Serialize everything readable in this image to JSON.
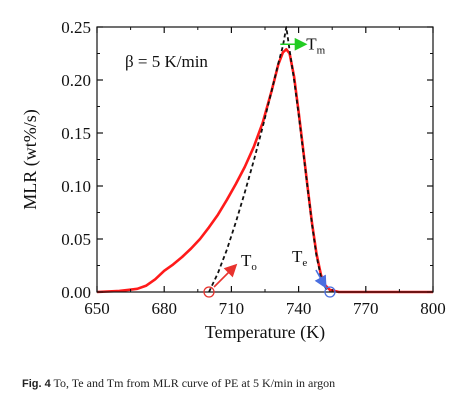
{
  "chart_data": {
    "type": "line",
    "xlabel": "Temperature (K)",
    "ylabel": "MLR (wt%/s)",
    "xlim": [
      650,
      800
    ],
    "ylim": [
      0,
      0.25
    ],
    "xticks": [
      "650",
      "680",
      "710",
      "740",
      "770",
      "800"
    ],
    "yticks": [
      "0.00",
      "0.05",
      "0.10",
      "0.15",
      "0.20",
      "0.25"
    ],
    "grid": false,
    "annotation_text": "β = 5 K/min",
    "series": [
      {
        "style": "solid",
        "color": "#ff1a1a",
        "x": [
          650,
          660,
          668,
          672,
          676,
          680,
          684,
          688,
          692,
          696,
          700,
          704,
          708,
          712,
          716,
          720,
          724,
          728,
          731,
          733,
          734.5,
          736,
          738,
          740,
          742,
          744,
          746,
          748,
          750,
          752,
          754,
          756,
          758,
          762,
          770,
          800
        ],
        "y": [
          0.0,
          0.001,
          0.003,
          0.006,
          0.012,
          0.02,
          0.026,
          0.033,
          0.041,
          0.05,
          0.061,
          0.073,
          0.087,
          0.102,
          0.118,
          0.137,
          0.16,
          0.19,
          0.215,
          0.226,
          0.229,
          0.225,
          0.203,
          0.17,
          0.135,
          0.099,
          0.065,
          0.036,
          0.016,
          0.006,
          0.002,
          0.001,
          0.0,
          0.0,
          0.0,
          0.0
        ]
      },
      {
        "style": "dashed",
        "color": "#111111",
        "x": [
          700,
          704,
          708,
          712,
          716,
          720,
          724,
          728,
          731,
          733,
          734.5,
          736,
          738,
          740,
          742,
          744,
          746,
          748,
          750,
          752,
          754
        ],
        "y": [
          0.0,
          0.018,
          0.04,
          0.066,
          0.094,
          0.124,
          0.156,
          0.19,
          0.216,
          0.232,
          0.25,
          0.228,
          0.2,
          0.168,
          0.133,
          0.098,
          0.064,
          0.034,
          0.014,
          0.004,
          0.0
        ]
      }
    ],
    "markers": [
      {
        "label": "T",
        "sub": "o",
        "x": 700,
        "y": 0.0,
        "color": "#e8332e"
      },
      {
        "label": "T",
        "sub": "e",
        "x": 754,
        "y": 0.0,
        "color": "#4a6fe0"
      },
      {
        "label": "T",
        "sub": "m",
        "x": 734.5,
        "y": 0.229,
        "color": "#22cc22"
      }
    ]
  },
  "caption": {
    "label": "Fig. 4",
    "text": "To, Te and Tm from MLR curve of PE at 5 K/min in argon"
  }
}
